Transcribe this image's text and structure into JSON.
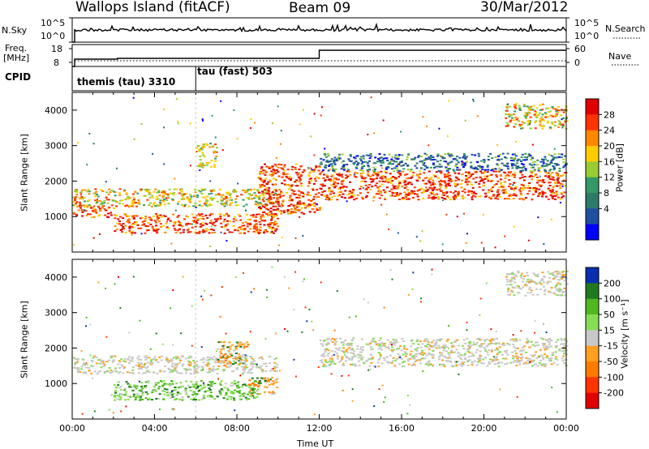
{
  "header": {
    "station": "Wallops Island (fitACF)",
    "beam": "Beam 09",
    "date": "30/Mar/2012"
  },
  "strips": {
    "nsky_label": "N.Sky",
    "nsky_ticks": [
      "10^5",
      "10^0"
    ],
    "nsearch_label": "N.Search",
    "nsearch_ticks": [
      "10^5",
      "10^0"
    ],
    "freq_label": [
      "Freq.",
      "[MHz]"
    ],
    "freq_ticks": [
      "18",
      "8"
    ],
    "nave_label": "Nave",
    "nave_ticks": [
      "60",
      "0"
    ],
    "cpid_label": "CPID",
    "cpid_segments": [
      {
        "label": "themis (tau) 3310",
        "start_hour": 0
      },
      {
        "label": "tau (fast) 503",
        "start_hour": 6
      }
    ]
  },
  "chart_data": [
    {
      "type": "heatmap",
      "panel": "power",
      "ylabel": "Slant Range [km]",
      "ylim": [
        0,
        4500
      ],
      "yticks": [
        1000,
        2000,
        3000,
        4000
      ],
      "xlim": [
        0,
        24
      ],
      "colorbar": {
        "label": "Power [dB]",
        "ticks": [
          "28",
          "24",
          "20",
          "16",
          "12",
          "8",
          "4"
        ],
        "colors": [
          "#e00000",
          "#ff3300",
          "#ff8800",
          "#ffcc00",
          "#99cc33",
          "#339966",
          "#2e7a6a",
          "#1e4fa0",
          "#0000ff"
        ]
      },
      "regions": [
        {
          "hours": [
            0,
            10
          ],
          "range_km": [
            1300,
            1800
          ],
          "level": "mid"
        },
        {
          "hours": [
            0,
            2
          ],
          "range_km": [
            1000,
            1350
          ],
          "level": "high"
        },
        {
          "hours": [
            2,
            10
          ],
          "range_km": [
            550,
            1100
          ],
          "level": "high"
        },
        {
          "hours": [
            6,
            7
          ],
          "range_km": [
            2400,
            3100
          ],
          "level": "mid"
        },
        {
          "hours": [
            9,
            12
          ],
          "range_km": [
            1100,
            2500
          ],
          "level": "high"
        },
        {
          "hours": [
            12,
            24
          ],
          "range_km": [
            1500,
            2300
          ],
          "level": "high"
        },
        {
          "hours": [
            12,
            24
          ],
          "range_km": [
            2300,
            2800
          ],
          "level": "low"
        },
        {
          "hours": [
            21,
            24
          ],
          "range_km": [
            3500,
            4200
          ],
          "level": "mid"
        }
      ]
    },
    {
      "type": "heatmap",
      "panel": "velocity",
      "ylabel": "Slant Range [km]",
      "ylim": [
        0,
        4500
      ],
      "yticks": [
        1000,
        2000,
        3000,
        4000
      ],
      "xlim": [
        0,
        24
      ],
      "xticks": [
        "00:00",
        "04:00",
        "08:00",
        "12:00",
        "16:00",
        "20:00",
        "00:00"
      ],
      "xlabel": "Time UT",
      "colorbar": {
        "label": "Velocity [m s⁻¹]",
        "ticks": [
          "200",
          "100",
          "50",
          "15",
          "-15",
          "-50",
          "-100",
          "-200"
        ],
        "colors": [
          "#0a2fb0",
          "#1f7a1f",
          "#4fb81f",
          "#88dd55",
          "#c8c8c8",
          "#ffa020",
          "#ff7a00",
          "#ff3300",
          "#e00000"
        ]
      },
      "regions": [
        {
          "hours": [
            0,
            10
          ],
          "range_km": [
            1300,
            1800
          ],
          "level": "ground"
        },
        {
          "hours": [
            2,
            9
          ],
          "range_km": [
            550,
            1100
          ],
          "level": "green"
        },
        {
          "hours": [
            8.5,
            10
          ],
          "range_km": [
            700,
            1200
          ],
          "level": "orange"
        },
        {
          "hours": [
            7,
            8.5
          ],
          "range_km": [
            1500,
            2200
          ],
          "level": "orange"
        },
        {
          "hours": [
            12,
            24
          ],
          "range_km": [
            1500,
            2300
          ],
          "level": "ground"
        },
        {
          "hours": [
            21,
            24
          ],
          "range_km": [
            3500,
            4200
          ],
          "level": "ground"
        }
      ]
    }
  ]
}
